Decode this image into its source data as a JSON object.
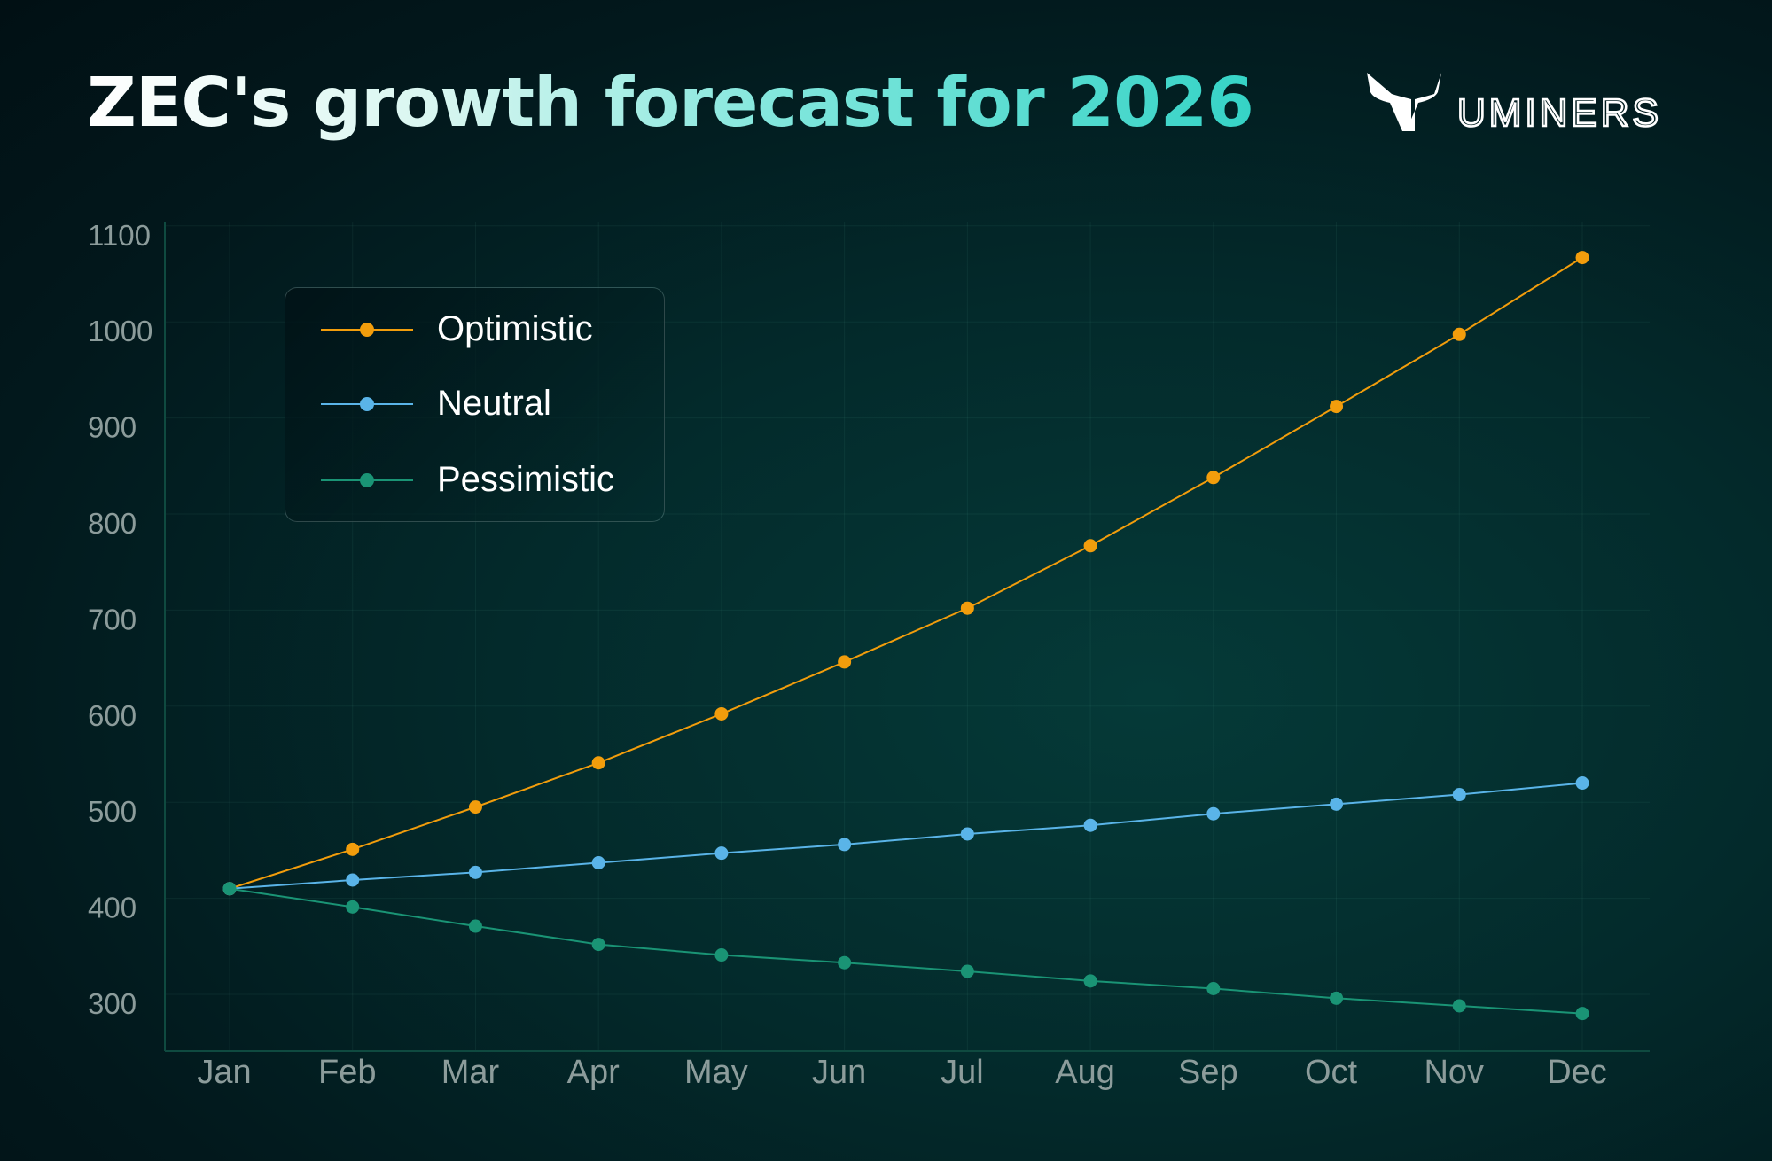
{
  "chart_data": {
    "type": "line",
    "title": "ZEC's growth forecast for 2026",
    "xlabel": "",
    "ylabel": "",
    "categories": [
      "Jan",
      "Feb",
      "Mar",
      "Apr",
      "May",
      "Jun",
      "Jul",
      "Aug",
      "Sep",
      "Oct",
      "Nov",
      "Dec"
    ],
    "yticks": [
      300,
      400,
      500,
      600,
      700,
      800,
      900,
      1000,
      1100
    ],
    "ylim": [
      245,
      1110
    ],
    "grid": true,
    "legend_position": "top-left",
    "series": [
      {
        "name": "Optimistic",
        "color": "#f29d0c",
        "values": [
          410,
          451,
          495,
          541,
          592,
          646,
          702,
          767,
          838,
          912,
          987,
          1067
        ]
      },
      {
        "name": "Neutral",
        "color": "#5ab4e8",
        "values": [
          410,
          419,
          427,
          437,
          447,
          456,
          467,
          476,
          488,
          498,
          508,
          520
        ]
      },
      {
        "name": "Pessimistic",
        "color": "#1a9475",
        "values": [
          410,
          391,
          371,
          352,
          341,
          333,
          324,
          314,
          306,
          296,
          288,
          280
        ]
      }
    ]
  },
  "brand": {
    "name": "UMINERS",
    "logo_icon": "bull-horns-icon"
  }
}
